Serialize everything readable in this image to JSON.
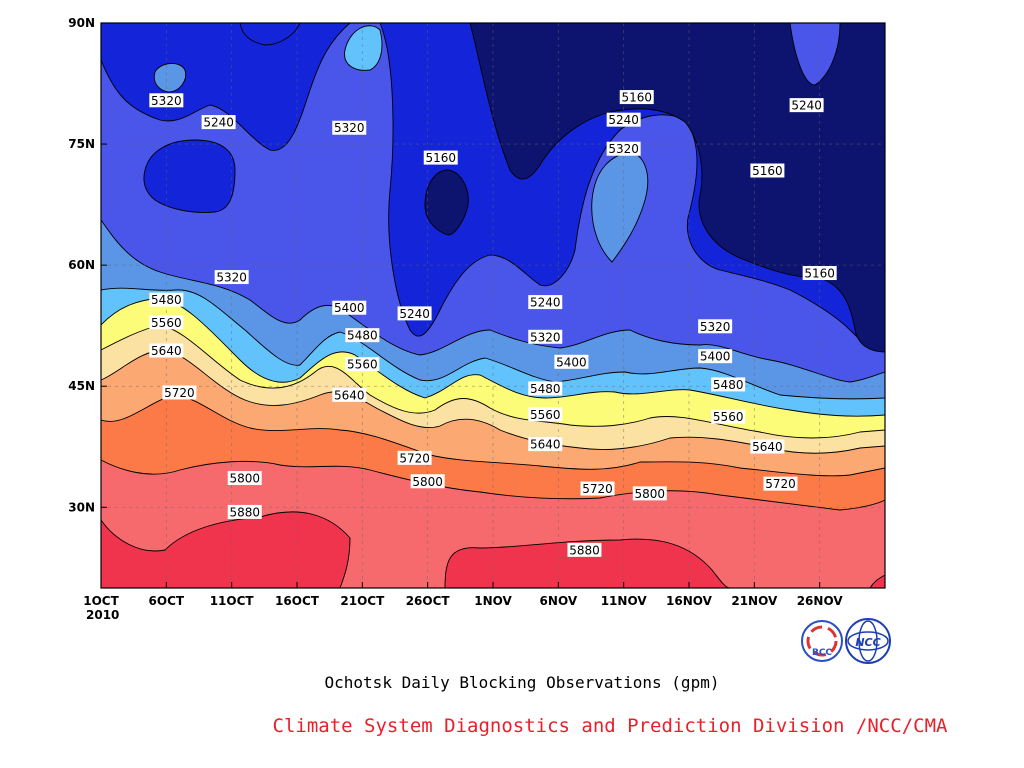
{
  "chart_data": {
    "type": "heatmap",
    "subtype": "filled-contour (time-latitude Hovmoller)",
    "title": "Ochotsk Daily Blocking Observations (gpm)",
    "x_ticks": [
      "1OCT",
      "6OCT",
      "11OCT",
      "16OCT",
      "21OCT",
      "26OCT",
      "1NOV",
      "6NOV",
      "11NOV",
      "16NOV",
      "21NOV",
      "26NOV"
    ],
    "x_year": "2010",
    "y_ticks": [
      "30N",
      "45N",
      "60N",
      "75N",
      "90N"
    ],
    "xlim": [
      "2010-10-01",
      "2010-11-30"
    ],
    "ylim": [
      20,
      90
    ],
    "contour_levels": [
      5160,
      5240,
      5320,
      5400,
      5480,
      5560,
      5640,
      5720,
      5800,
      5880
    ],
    "band_colors": [
      "#0c1470",
      "#1424d8",
      "#4a55ea",
      "#5b95e6",
      "#62c2fc",
      "#fcfc78",
      "#fce2a2",
      "#fca872",
      "#fc7a48",
      "#f66a6e",
      "#f0344e"
    ],
    "grid": true,
    "contour_labels": [
      {
        "text": "5320",
        "date": "2010-10-06",
        "lat": 80.3
      },
      {
        "text": "5240",
        "date": "2010-10-10",
        "lat": 77.6
      },
      {
        "text": "5320",
        "date": "2010-10-20",
        "lat": 76.9
      },
      {
        "text": "5160",
        "date": "2010-10-27",
        "lat": 73.2
      },
      {
        "text": "5160",
        "date": "2010-11-11",
        "lat": 80.7
      },
      {
        "text": "5240",
        "date": "2010-11-10",
        "lat": 77.9
      },
      {
        "text": "5320",
        "date": "2010-11-10",
        "lat": 74.3
      },
      {
        "text": "5240",
        "date": "2010-11-24",
        "lat": 79.7
      },
      {
        "text": "5160",
        "date": "2010-11-21",
        "lat": 71.6
      },
      {
        "text": "5320",
        "date": "2010-10-11",
        "lat": 58.4
      },
      {
        "text": "5160",
        "date": "2010-11-25",
        "lat": 58.9
      },
      {
        "text": "5480",
        "date": "2010-10-06",
        "lat": 55.6
      },
      {
        "text": "5560",
        "date": "2010-10-06",
        "lat": 52.8
      },
      {
        "text": "5640",
        "date": "2010-10-06",
        "lat": 49.3
      },
      {
        "text": "5720",
        "date": "2010-10-07",
        "lat": 44.1
      },
      {
        "text": "5400",
        "date": "2010-10-20",
        "lat": 54.6
      },
      {
        "text": "5480",
        "date": "2010-10-21",
        "lat": 51.2
      },
      {
        "text": "5560",
        "date": "2010-10-21",
        "lat": 47.6
      },
      {
        "text": "5640",
        "date": "2010-10-20",
        "lat": 43.8
      },
      {
        "text": "5240",
        "date": "2010-10-25",
        "lat": 53.9
      },
      {
        "text": "5240",
        "date": "2010-11-04",
        "lat": 55.3
      },
      {
        "text": "5320",
        "date": "2010-11-04",
        "lat": 51.0
      },
      {
        "text": "5400",
        "date": "2010-11-06",
        "lat": 47.9
      },
      {
        "text": "5480",
        "date": "2010-11-04",
        "lat": 44.6
      },
      {
        "text": "5560",
        "date": "2010-11-04",
        "lat": 41.4
      },
      {
        "text": "5640",
        "date": "2010-11-04",
        "lat": 37.7
      },
      {
        "text": "5720",
        "date": "2010-10-25",
        "lat": 36.0
      },
      {
        "text": "5800",
        "date": "2010-10-26",
        "lat": 33.1
      },
      {
        "text": "5800",
        "date": "2010-10-12",
        "lat": 33.5
      },
      {
        "text": "5880",
        "date": "2010-10-12",
        "lat": 29.3
      },
      {
        "text": "5720",
        "date": "2010-11-08",
        "lat": 32.2
      },
      {
        "text": "5800",
        "date": "2010-11-12",
        "lat": 31.6
      },
      {
        "text": "5880",
        "date": "2010-11-07",
        "lat": 24.6
      },
      {
        "text": "5320",
        "date": "2010-11-17",
        "lat": 52.3
      },
      {
        "text": "5400",
        "date": "2010-11-17",
        "lat": 48.6
      },
      {
        "text": "5480",
        "date": "2010-11-18",
        "lat": 45.1
      },
      {
        "text": "5560",
        "date": "2010-11-18",
        "lat": 41.1
      },
      {
        "text": "5640",
        "date": "2010-11-21",
        "lat": 37.4
      },
      {
        "text": "5720",
        "date": "2010-11-22",
        "lat": 32.8
      }
    ]
  },
  "credit": "Climate System Diagnostics and Prediction Division /NCC/CMA",
  "logos": {
    "bcc": {
      "text": "BCC",
      "color": "#2a4fc0"
    },
    "ncc": {
      "text": "NCC",
      "color": "#1f3fb0"
    }
  }
}
